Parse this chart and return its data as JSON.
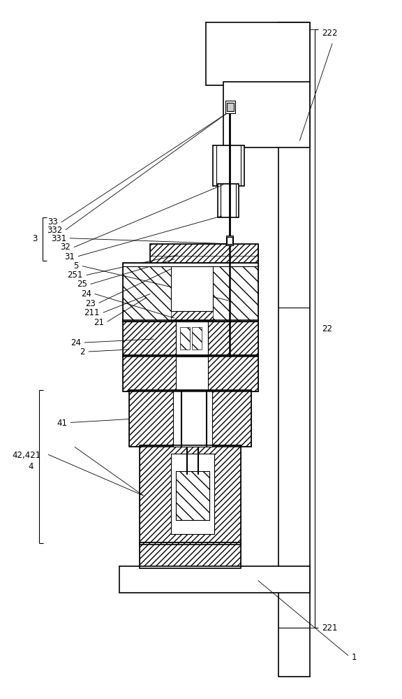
{
  "bg_color": "#ffffff",
  "line_color": "#000000",
  "fig_width": 5.76,
  "fig_height": 10.0
}
